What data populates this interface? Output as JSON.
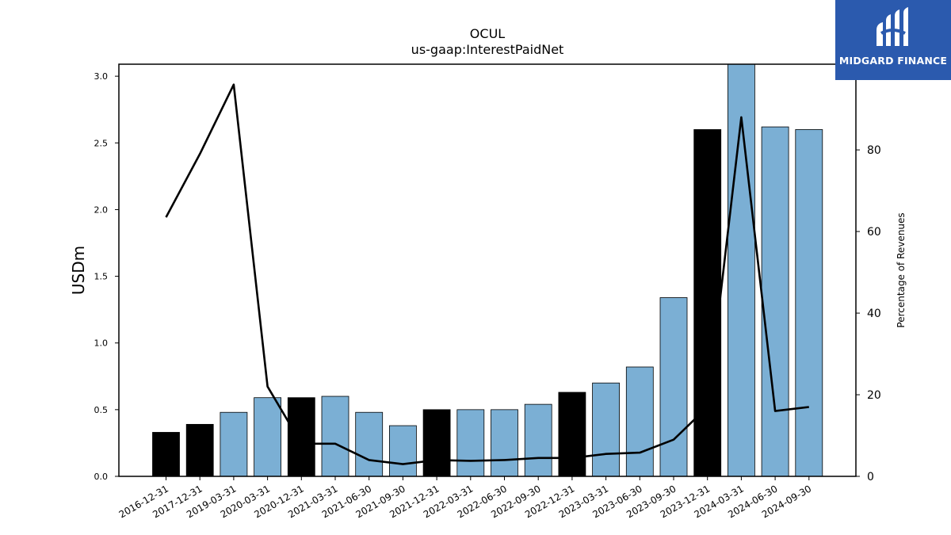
{
  "header": {
    "title": "OCUL",
    "subtitle": "us-gaap:InterestPaidNet"
  },
  "logo": {
    "text": "MIDGARD FINANCE",
    "icon": "midgard-logo-icon",
    "background": "#2b5aae"
  },
  "chart_data": {
    "type": "bar",
    "categories": [
      "2016-12-31",
      "2017-12-31",
      "2019-03-31",
      "2020-03-31",
      "2020-12-31",
      "2021-03-31",
      "2021-06-30",
      "2021-09-30",
      "2021-12-31",
      "2022-03-31",
      "2022-06-30",
      "2022-09-30",
      "2022-12-31",
      "2023-03-31",
      "2023-06-30",
      "2023-09-30",
      "2023-12-31",
      "2024-03-31",
      "2024-06-30",
      "2024-09-30"
    ],
    "series": [
      {
        "type": "bar",
        "axis": "left",
        "values": [
          0.33,
          0.39,
          0.48,
          0.59,
          0.59,
          0.6,
          0.48,
          0.38,
          0.5,
          0.5,
          0.5,
          0.54,
          0.63,
          0.7,
          0.82,
          1.34,
          2.6,
          3.1,
          2.62,
          2.6
        ],
        "colors": [
          "#000000",
          "#000000",
          "#7bafd4",
          "#7bafd4",
          "#000000",
          "#7bafd4",
          "#7bafd4",
          "#7bafd4",
          "#000000",
          "#7bafd4",
          "#7bafd4",
          "#7bafd4",
          "#000000",
          "#7bafd4",
          "#7bafd4",
          "#7bafd4",
          "#000000",
          "#7bafd4",
          "#7bafd4",
          "#7bafd4"
        ]
      },
      {
        "type": "line",
        "axis": "right",
        "color": "#000000",
        "values": [
          63.5,
          79,
          96,
          22,
          8,
          8,
          4,
          3,
          4,
          3.8,
          4,
          4.5,
          4.5,
          5.5,
          5.8,
          9,
          17,
          88,
          16,
          17
        ]
      }
    ],
    "ylabel": "USDm",
    "y2label": "Percentage of Revenues",
    "ylim": [
      0,
      3.09
    ],
    "y2lim": [
      0,
      101
    ],
    "yticks": [
      "0.0",
      "0.5",
      "1.0",
      "1.5",
      "2.0",
      "2.5",
      "3.0"
    ],
    "y2ticks": [
      "0",
      "20",
      "40",
      "60",
      "80"
    ],
    "grid": false
  }
}
